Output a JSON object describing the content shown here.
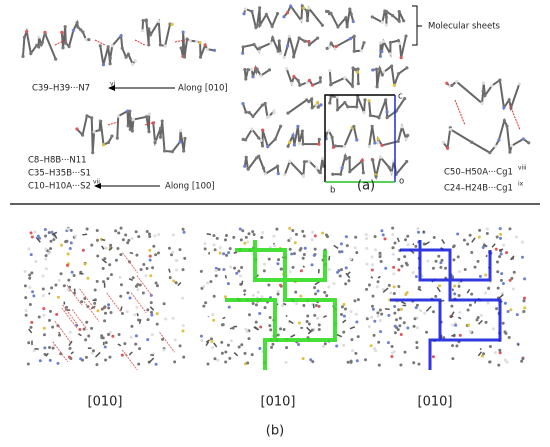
{
  "panel_a": {
    "chain_010": {
      "label": "C39–H39···N7",
      "sup": "vi",
      "direction": "Along [010]"
    },
    "chain_100": {
      "labels": [
        {
          "text": "C8–H8B···N11",
          "sup": ""
        },
        {
          "text": "C35–H35B···S1",
          "sup": ""
        },
        {
          "text": "C10–H10A···S2",
          "sup": "vii"
        }
      ],
      "direction": "Along [100]"
    },
    "packing": {
      "sheets_label": "Molecular sheets",
      "axes": [
        "c",
        "b",
        "o"
      ]
    },
    "dimer": {
      "labels": [
        {
          "text": "C50–H50A···Cg1",
          "sup": "viii"
        },
        {
          "text": "C24–H24B···Cg1",
          "sup": "ix"
        }
      ]
    },
    "caption": "(a)"
  },
  "panel_b": {
    "views": [
      "[010]",
      "[010]",
      "[010]"
    ],
    "caption": "(b)"
  }
}
